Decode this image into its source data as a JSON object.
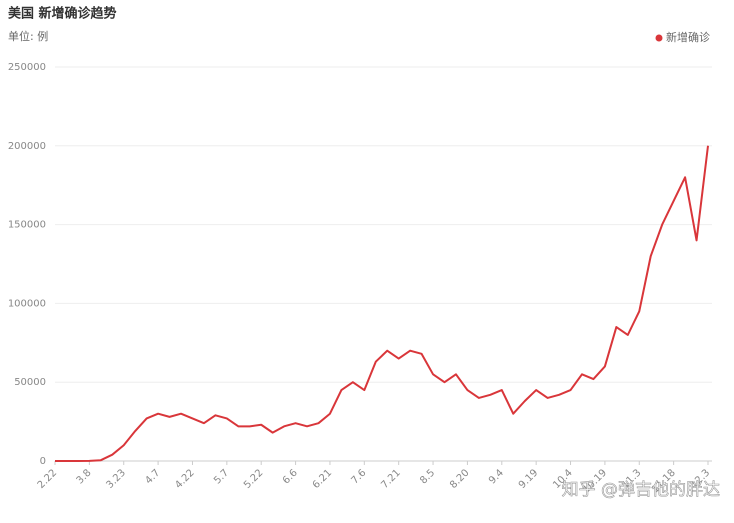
{
  "chart_data": {
    "type": "line",
    "title": "美国 新增确诊趋势",
    "subtitle": "单位: 例",
    "watermark": "知乎 @弹吉他的胖达",
    "categories": [
      "2.22",
      null,
      null,
      "3.8",
      null,
      null,
      "3.23",
      null,
      null,
      "4.7",
      null,
      null,
      "4.22",
      null,
      null,
      "5.7",
      null,
      null,
      "5.22",
      null,
      null,
      "6.6",
      null,
      null,
      "6.21",
      null,
      null,
      "7.6",
      null,
      null,
      "7.21",
      null,
      null,
      "8.5",
      null,
      null,
      "8.20",
      null,
      null,
      "9.4",
      null,
      null,
      "9.19",
      null,
      null,
      "10.4",
      null,
      null,
      "10.19",
      null,
      null,
      "11.3",
      null,
      null,
      "11.18",
      null,
      null,
      "12.3"
    ],
    "series": [
      {
        "name": "新增确诊",
        "color": "#d9363a",
        "values": [
          0,
          0,
          0,
          100,
          500,
          4000,
          10000,
          19000,
          27000,
          30000,
          28000,
          30000,
          27000,
          24000,
          29000,
          27000,
          22000,
          22000,
          23000,
          18000,
          22000,
          24000,
          22000,
          24000,
          30000,
          45000,
          50000,
          45000,
          63000,
          70000,
          65000,
          70000,
          68000,
          55000,
          50000,
          55000,
          45000,
          40000,
          42000,
          45000,
          30000,
          38000,
          45000,
          40000,
          42000,
          45000,
          55000,
          52000,
          60000,
          85000,
          80000,
          95000,
          130000,
          150000,
          165000,
          180000,
          140000,
          200000
        ]
      }
    ],
    "ylim": [
      0,
      250000
    ],
    "yticks": [
      0,
      50000,
      100000,
      150000,
      200000,
      250000
    ],
    "grid": true,
    "legend": "top-right"
  }
}
